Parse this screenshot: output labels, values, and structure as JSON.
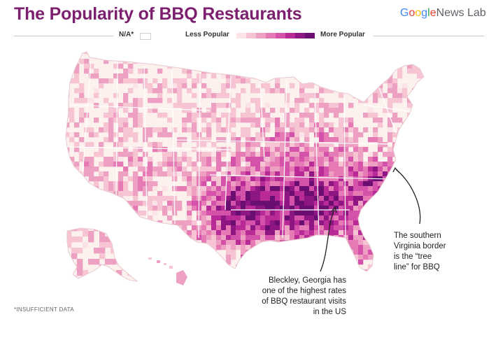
{
  "title": "The Popularity of BBQ Restaurants",
  "brand": {
    "letters": [
      {
        "ch": "G",
        "color": "#4285F4"
      },
      {
        "ch": "o",
        "color": "#EA4335"
      },
      {
        "ch": "o",
        "color": "#FBBC05"
      },
      {
        "ch": "g",
        "color": "#4285F4"
      },
      {
        "ch": "l",
        "color": "#34A853"
      },
      {
        "ch": "e",
        "color": "#EA4335"
      }
    ],
    "rest": "News Lab"
  },
  "legend": {
    "na_label": "N/A*",
    "low_label": "Less Popular",
    "high_label": "More Popular",
    "scale_colors": [
      "#fbe3e8",
      "#f6c4d3",
      "#eea0c2",
      "#e57ab4",
      "#d452a9",
      "#b82b96",
      "#8e1682",
      "#6a0e71"
    ],
    "na_color": "#ffffff"
  },
  "annotations": {
    "virginia": "The southern\nVirginia border\nis the “tree\nline” for BBQ",
    "bleckley": "Bleckley, Georgia has\none of the highest rates\nof BBQ restaurant visits\nin the US"
  },
  "footnote": "*INSUFFICIENT DATA",
  "colors": {
    "title": "#7b1f6e",
    "state_border": "#ffffff",
    "base_fill": "#fdf1ee"
  }
}
